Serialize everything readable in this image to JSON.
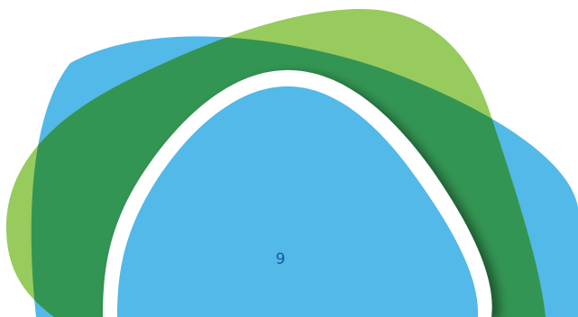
{
  "page": {
    "number": "9"
  },
  "colors": {
    "background": "#ffffff",
    "light_blue": "#52b9e9",
    "light_green": "#97cb5d",
    "dark_green": "#339553",
    "white_ring": "#ffffff",
    "number_text": "#1b57a4"
  }
}
